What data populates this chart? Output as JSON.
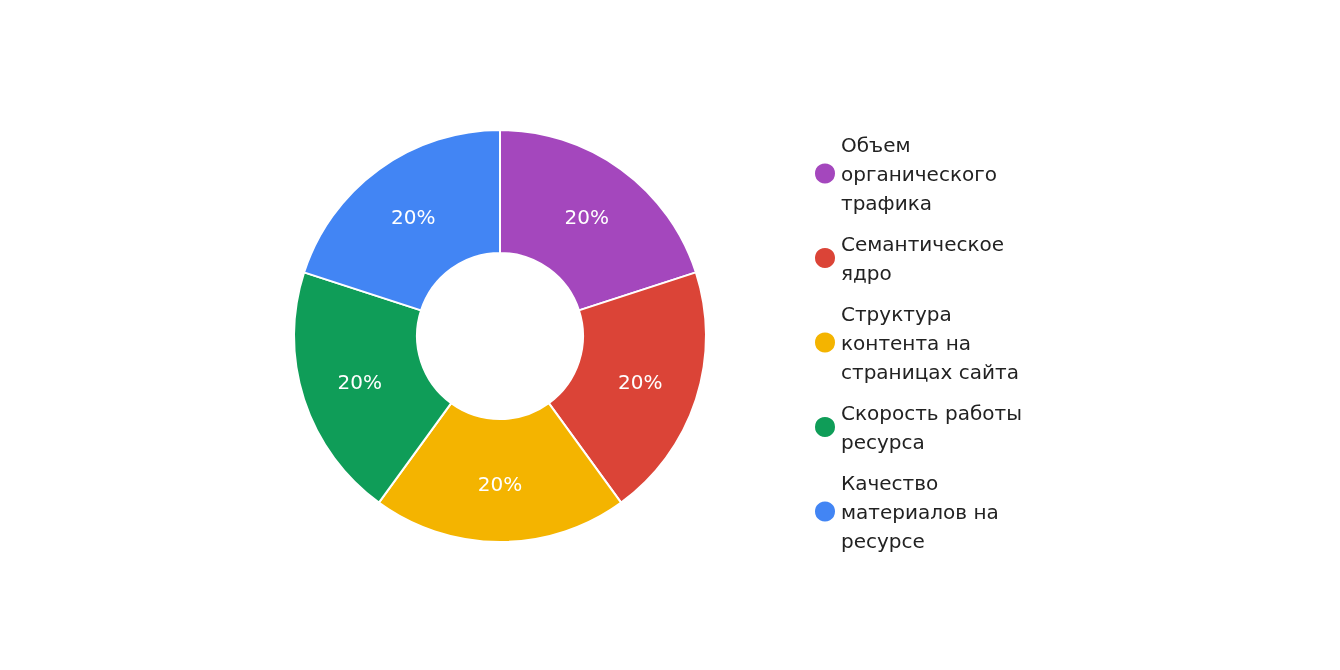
{
  "chart_data": {
    "type": "donut",
    "categories": [
      "Объем органического трафика",
      "Семантическое ядро",
      "Структура контента на страницах сайта",
      "Скорость работы ресурса",
      "Качество материалов на ресурсе"
    ],
    "values": [
      20,
      20,
      20,
      20,
      20
    ],
    "colors": [
      "#a447bd",
      "#db4437",
      "#f4b400",
      "#0f9d58",
      "#4285f4"
    ],
    "value_labels": [
      "20%",
      "20%",
      "20%",
      "20%",
      "20%"
    ],
    "legend": "right"
  }
}
